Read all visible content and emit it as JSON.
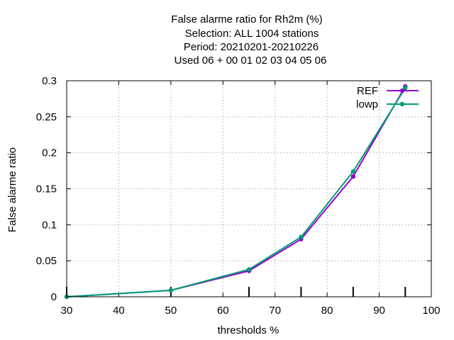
{
  "chart_data": {
    "type": "line",
    "title_lines": [
      "False alarme ratio  for Rh2m (%)",
      "Selection: ALL   1004 stations",
      "Period: 20210201-20210226",
      "Used  06  + 00 01 02 03 04 05 06"
    ],
    "xlabel": "thresholds %",
    "ylabel": "False alarme ratio",
    "xlim": [
      30,
      100
    ],
    "ylim": [
      0,
      0.3
    ],
    "xticks": [
      30,
      40,
      50,
      60,
      70,
      80,
      90,
      100
    ],
    "yticks": [
      0,
      0.05,
      0.1,
      0.15,
      0.2,
      0.25,
      0.3
    ],
    "xtick_labels": [
      "30",
      "40",
      "50",
      "60",
      "70",
      "80",
      "90",
      "100"
    ],
    "ytick_labels": [
      "0",
      "0.05",
      "0.1",
      "0.15",
      "0.2",
      "0.25",
      "0.3"
    ],
    "grid": true,
    "legend_position": "top-right",
    "bottom_tick_marks": [
      30,
      50,
      65,
      75,
      85,
      95
    ],
    "x": [
      30,
      50,
      65,
      75,
      85,
      95
    ],
    "series": [
      {
        "name": "REF",
        "color": "#9400d3",
        "values": [
          0.0,
          0.009,
          0.036,
          0.08,
          0.167,
          0.292
        ]
      },
      {
        "name": "lowp",
        "color": "#009e73",
        "values": [
          0.0,
          0.009,
          0.038,
          0.083,
          0.174,
          0.29
        ]
      }
    ]
  }
}
